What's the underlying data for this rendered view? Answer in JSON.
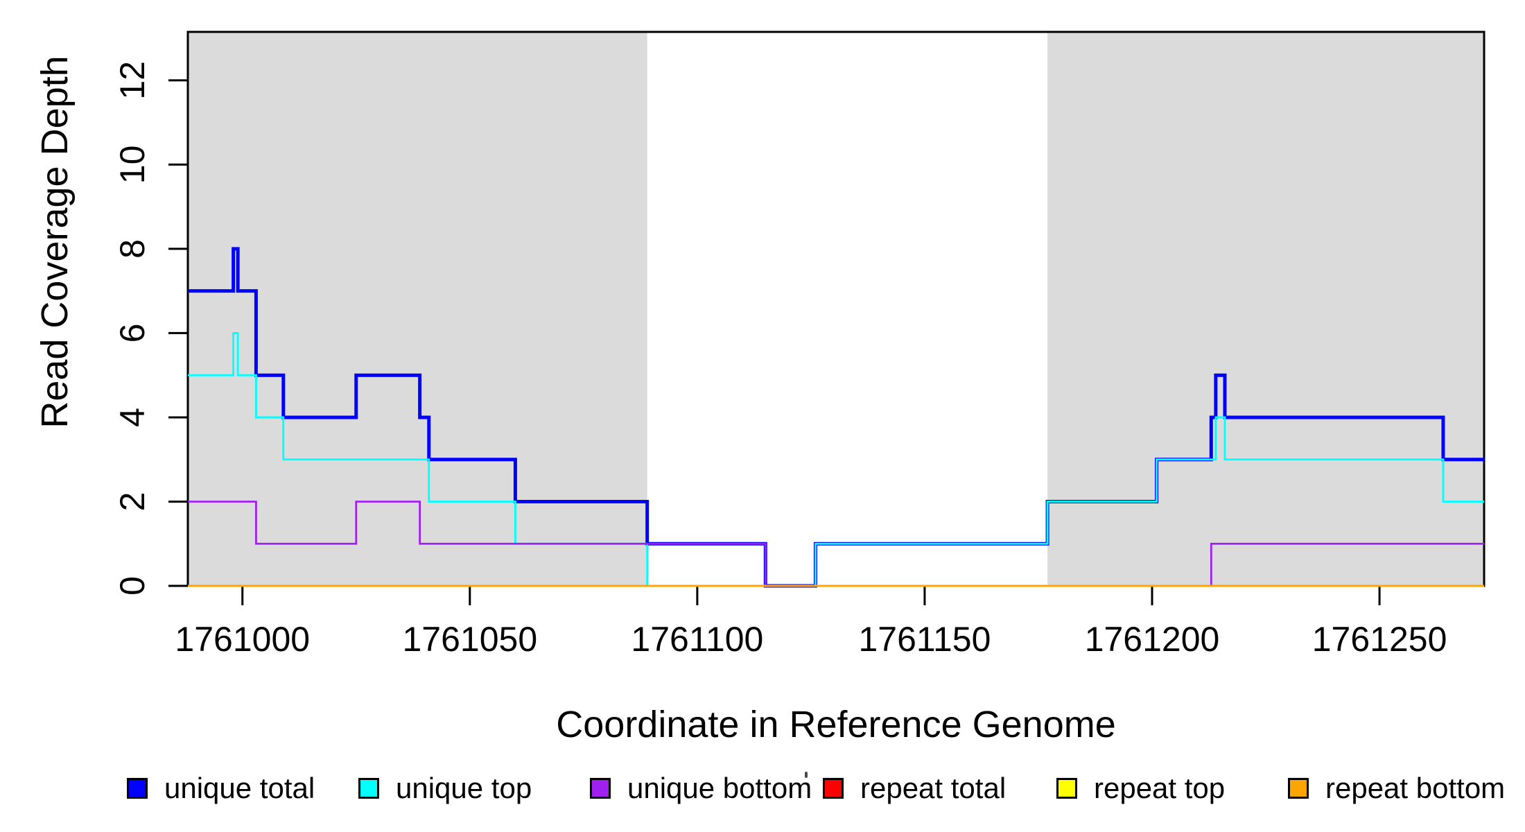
{
  "chart_data": {
    "type": "line",
    "subtype": "step-after-coverage-plot",
    "title": "",
    "xlabel": "Coordinate in Reference Genome",
    "ylabel": "Read Coverage Depth",
    "xlim": [
      1760988,
      1761273
    ],
    "ylim": [
      0,
      13.15
    ],
    "x_ticks": [
      1761000,
      1761050,
      1761100,
      1761150,
      1761200,
      1761250
    ],
    "y_ticks": [
      0,
      2,
      4,
      6,
      8,
      10,
      12
    ],
    "grid": false,
    "legend_position": "bottom",
    "background_color": "#ffffff",
    "shaded_region_color": "#dbdbdb",
    "shaded_regions": [
      {
        "x0": 1760988,
        "x1": 1761089
      },
      {
        "x0": 1761177,
        "x1": 1761273
      }
    ],
    "series": [
      {
        "name": "unique total",
        "color": "#0000ff",
        "line_width": 5,
        "steps": [
          [
            1760988,
            7
          ],
          [
            1760998,
            8
          ],
          [
            1760999,
            7
          ],
          [
            1761003,
            5
          ],
          [
            1761009,
            4
          ],
          [
            1761025,
            5
          ],
          [
            1761039,
            4
          ],
          [
            1761041,
            3
          ],
          [
            1761060,
            2
          ],
          [
            1761089,
            1
          ],
          [
            1761115,
            0
          ],
          [
            1761126,
            1
          ],
          [
            1761177,
            2
          ],
          [
            1761201,
            3
          ],
          [
            1761213,
            4
          ],
          [
            1761214,
            5
          ],
          [
            1761216,
            4
          ],
          [
            1761264,
            3
          ]
        ]
      },
      {
        "name": "unique top",
        "color": "#00ffff",
        "line_width": 2.8,
        "steps": [
          [
            1760988,
            5
          ],
          [
            1760998,
            6
          ],
          [
            1760999,
            5
          ],
          [
            1761003,
            4
          ],
          [
            1761009,
            3
          ],
          [
            1761041,
            2
          ],
          [
            1761060,
            1
          ],
          [
            1761089,
            0
          ],
          [
            1761126,
            1
          ],
          [
            1761177,
            2
          ],
          [
            1761201,
            3
          ],
          [
            1761214,
            4
          ],
          [
            1761216,
            3
          ],
          [
            1761264,
            2
          ]
        ]
      },
      {
        "name": "unique bottom",
        "color": "#a020f0",
        "line_width": 2.8,
        "steps": [
          [
            1760988,
            2
          ],
          [
            1761003,
            1
          ],
          [
            1761025,
            2
          ],
          [
            1761039,
            1
          ],
          [
            1761115,
            0
          ],
          [
            1761213,
            1
          ]
        ]
      },
      {
        "name": "repeat total",
        "color": "#ff0000",
        "line_width": 2.8,
        "steps": [
          [
            1760988,
            0
          ]
        ]
      },
      {
        "name": "repeat top",
        "color": "#ffff00",
        "line_width": 2.8,
        "steps": [
          [
            1760988,
            0
          ]
        ]
      },
      {
        "name": "repeat bottom",
        "color": "#ffa500",
        "line_width": 2.8,
        "steps": [
          [
            1760988,
            0
          ]
        ]
      }
    ],
    "legend": [
      {
        "label": "unique total",
        "color": "#0000ff"
      },
      {
        "label": "unique top",
        "color": "#00ffff"
      },
      {
        "label": "unique bottom",
        "color": "#a020f0"
      },
      {
        "label": "repeat total",
        "color": "#ff0000"
      },
      {
        "label": "repeat top",
        "color": "#ffff00"
      },
      {
        "label": "repeat bottom",
        "color": "#ffa500"
      }
    ]
  },
  "axes": {
    "x_tick_labels": [
      "1761000",
      "1761050",
      "1761100",
      "1761150",
      "1761200",
      "1761250"
    ],
    "y_tick_labels": [
      "0",
      "2",
      "4",
      "6",
      "8",
      "10",
      "12"
    ]
  }
}
